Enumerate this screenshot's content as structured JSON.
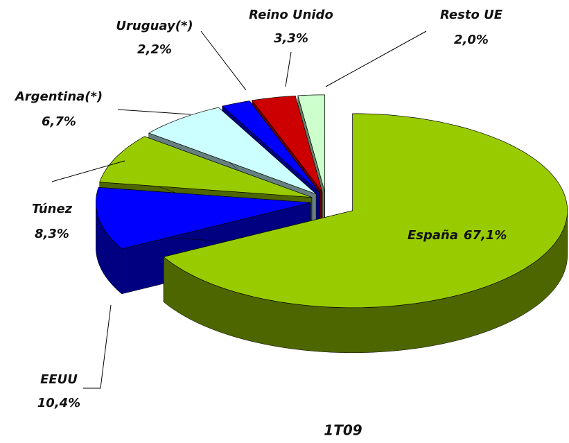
{
  "chart_data": {
    "type": "pie",
    "title": "1T09",
    "categories": [
      "España",
      "EEUU",
      "Túnez",
      "Argentina(*)",
      "Uruguay(*)",
      "Reino Unido",
      "Resto UE"
    ],
    "values": [
      67.1,
      10.4,
      8.3,
      6.7,
      2.2,
      3.3,
      2.0
    ],
    "value_labels": [
      "67,1%",
      "10,4%",
      "8,3%",
      "6,7%",
      "2,2%",
      "3,3%",
      "2,0%"
    ],
    "colors": [
      "#99cc00",
      "#0000ff",
      "#99cc00",
      "#ccffff",
      "#0000ff",
      "#cc0000",
      "#ccffcc"
    ]
  }
}
